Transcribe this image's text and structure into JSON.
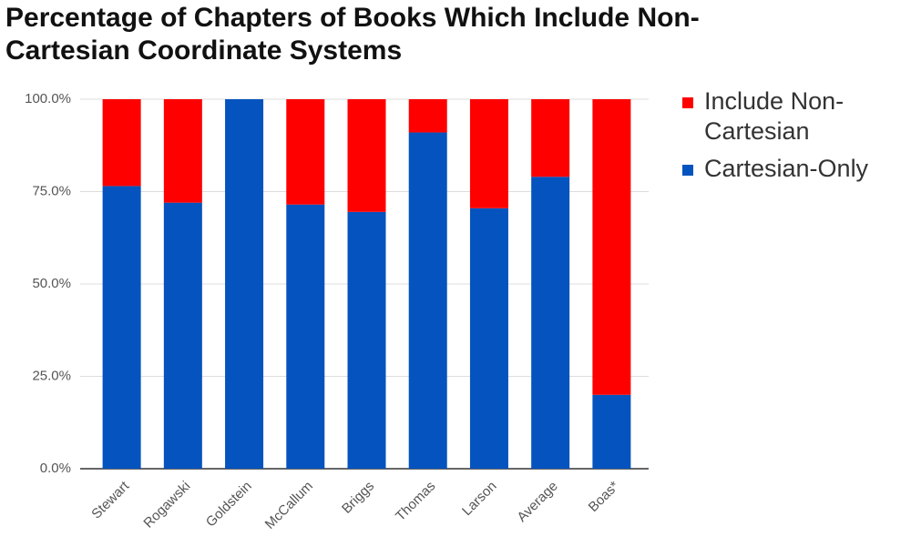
{
  "chart_data": {
    "type": "stacked-bar",
    "title": "Percentage of Chapters of Books Which Include Non-Cartesian Coordinate Systems",
    "categories": [
      "Stewart",
      "Rogawski",
      "Goldstein",
      "McCallum",
      "Briggs",
      "Thomas",
      "Larson",
      "Average",
      "Boas*"
    ],
    "series": [
      {
        "name": "Cartesian-Only",
        "color": "#0553be",
        "values": [
          76.5,
          72,
          100,
          71.5,
          69.5,
          91,
          70.5,
          79,
          20
        ]
      },
      {
        "name": "Include Non-Cartesian",
        "color": "#fe0000",
        "values": [
          23.5,
          28,
          0,
          28.5,
          30.5,
          9,
          29.5,
          21,
          80
        ]
      }
    ],
    "ylim": [
      0,
      100
    ],
    "yticks": [
      {
        "value": 0,
        "label": "0.0%"
      },
      {
        "value": 25,
        "label": "25.0%"
      },
      {
        "value": 50,
        "label": "50.0%"
      },
      {
        "value": 75,
        "label": "75.0%"
      },
      {
        "value": 100,
        "label": "100.0%"
      }
    ],
    "grid": true
  }
}
